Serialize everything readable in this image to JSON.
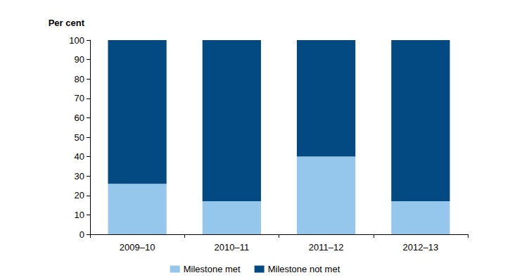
{
  "chart_data": {
    "type": "bar",
    "stacked": true,
    "ylabel": "Per cent",
    "categories": [
      "2009–10",
      "2010–11",
      "2011–12",
      "2012–13"
    ],
    "series": [
      {
        "name": "Milestone met",
        "color": "#95c6ec",
        "values": [
          26,
          17,
          40,
          17
        ]
      },
      {
        "name": "Milestone not met",
        "color": "#034a82",
        "values": [
          74,
          83,
          60,
          83
        ]
      }
    ],
    "ylim": [
      0,
      100
    ],
    "yticks": [
      0,
      10,
      20,
      30,
      40,
      50,
      60,
      70,
      80,
      90,
      100
    ],
    "grid": false,
    "legend": "bottom"
  }
}
